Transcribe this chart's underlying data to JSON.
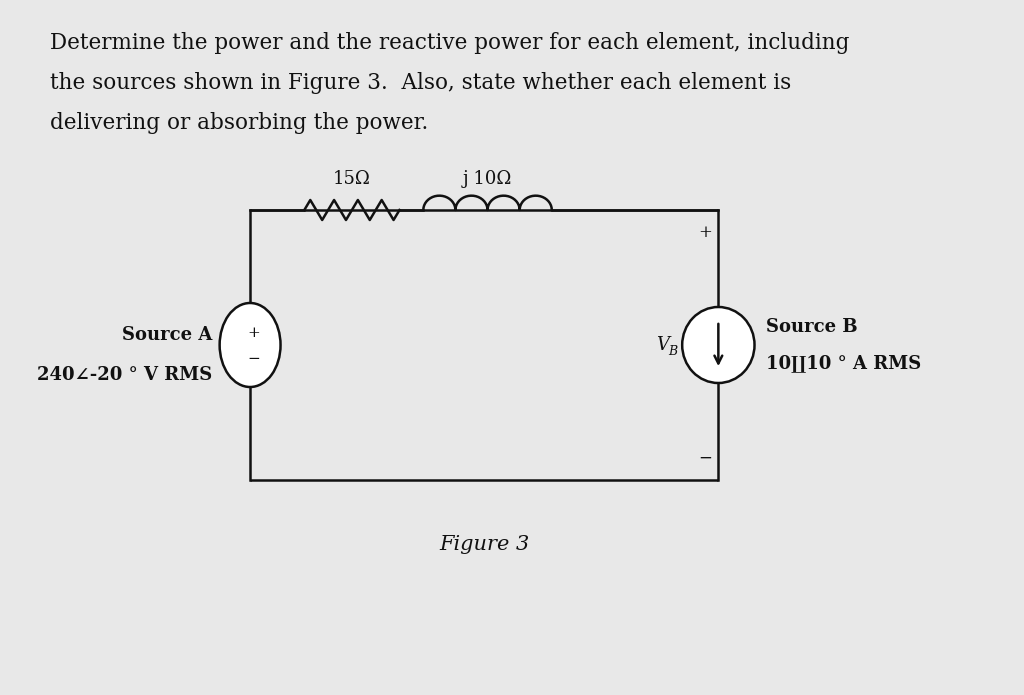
{
  "background_color": "#e8e8e8",
  "paper_color": "#f0f0f0",
  "text_color": "#1a1a1a",
  "figure_label": "Figure 3",
  "source_a_label": "Source A",
  "source_a_value": "240∠-20 ° V RMS",
  "source_b_label": "Source B",
  "source_b_value": "10∐10 ° A RMS",
  "resistor_label": "15Ω",
  "inductor_label": "j 10Ω",
  "vb_label": "V",
  "vb_sub": "B",
  "circuit_line_color": "#111111",
  "title_line1": "Determine the power and the reactive power for each element, including",
  "title_line2": "the sources shown in Figure 3.  Also, state whether each element is",
  "title_line3": "delivering or absorbing the power."
}
